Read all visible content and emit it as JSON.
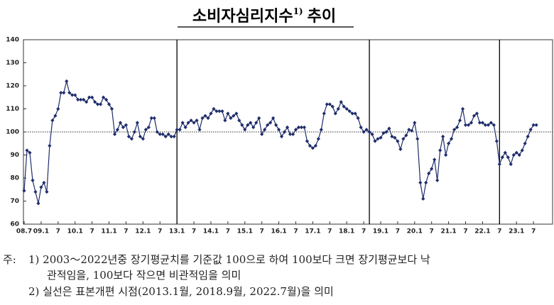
{
  "chart_data": {
    "type": "line",
    "title": "소비자심리지수",
    "title_sup": "1)",
    "title_suffix": "추이",
    "categories": [
      "08.7",
      null,
      null,
      null,
      null,
      null,
      "09.1",
      null,
      null,
      null,
      null,
      null,
      "7",
      null,
      null,
      null,
      null,
      null,
      "10.1",
      null,
      null,
      null,
      null,
      null,
      "7",
      null,
      null,
      null,
      null,
      null,
      "11.1",
      null,
      null,
      null,
      null,
      null,
      "7",
      null,
      null,
      null,
      null,
      null,
      "12.1",
      null,
      null,
      null,
      null,
      null,
      "7",
      null,
      null,
      null,
      null,
      null,
      "13.1",
      null,
      null,
      null,
      null,
      null,
      "7",
      null,
      null,
      null,
      null,
      null,
      "14.1",
      null,
      null,
      null,
      null,
      null,
      "7",
      null,
      null,
      null,
      null,
      null,
      "15.1",
      null,
      null,
      null,
      null,
      null,
      "7",
      null,
      null,
      null,
      null,
      null,
      "16.1",
      null,
      null,
      null,
      null,
      null,
      "7",
      null,
      null,
      null,
      null,
      null,
      "17.1",
      null,
      null,
      null,
      null,
      null,
      "7",
      null,
      null,
      null,
      null,
      null,
      "18.1",
      null,
      null,
      null,
      null,
      null,
      "7",
      null,
      null,
      null,
      null,
      null,
      "19.1",
      null,
      null,
      null,
      null,
      null,
      "7",
      null,
      null,
      null,
      null,
      null,
      "20.1",
      null,
      null,
      null,
      null,
      null,
      "7",
      null,
      null,
      null,
      null,
      null,
      "21.1",
      null,
      null,
      null,
      null,
      null,
      "7",
      null,
      null,
      null,
      null,
      null,
      "22.1",
      null,
      null,
      null,
      null,
      null,
      "7",
      null,
      null,
      null,
      null,
      null,
      "23.1",
      null,
      null,
      null,
      null,
      null,
      "7",
      null,
      null,
      null,
      null,
      null,
      null
    ],
    "values": [
      74.5,
      92,
      91,
      79,
      74,
      69,
      76,
      78,
      74,
      94,
      105,
      107,
      110,
      117,
      117,
      122,
      117,
      116,
      116,
      114,
      114,
      114,
      113,
      115,
      115,
      113,
      112,
      112,
      115,
      114,
      112,
      110,
      99,
      101,
      104,
      102,
      103,
      98,
      97,
      100,
      104,
      98,
      97,
      101,
      102,
      106,
      106,
      100,
      99,
      99,
      98,
      99,
      98,
      98,
      101,
      101,
      104,
      102,
      104,
      105,
      104,
      105,
      101,
      106,
      107,
      106,
      108,
      110,
      109,
      109,
      109,
      105,
      108,
      106,
      107,
      108,
      105,
      103,
      101,
      103,
      104,
      102,
      104,
      106,
      99,
      101,
      103,
      104,
      106,
      103,
      101,
      98,
      100,
      102,
      99,
      99,
      101,
      102,
      102,
      102,
      96,
      94,
      93,
      94,
      97,
      101,
      108,
      112,
      112,
      111,
      108,
      110,
      113,
      111,
      110,
      109,
      108,
      108,
      106,
      102,
      100,
      101,
      100,
      99,
      96,
      97,
      97.5,
      99.5,
      100,
      101.5,
      98,
      97.5,
      96,
      92.5,
      97,
      98.5,
      101,
      100.5,
      104,
      97,
      78,
      71,
      78,
      82,
      84,
      88,
      79,
      92,
      98,
      90,
      95,
      97,
      101,
      102,
      105,
      110,
      103,
      103,
      104,
      107,
      108,
      104,
      104,
      103,
      103,
      104,
      103,
      96,
      86,
      89,
      91,
      89,
      86,
      90,
      91,
      90,
      92,
      95,
      98,
      101,
      103,
      103,
      null,
      null,
      null,
      null,
      null
    ],
    "color": "#1f2d6b",
    "ylim": [
      60,
      140
    ],
    "yticks": [
      60,
      70,
      80,
      90,
      100,
      110,
      120,
      130,
      140
    ],
    "reference_line_y": 100,
    "reference_lines_x": [
      54,
      122,
      168
    ],
    "grid": false,
    "notes_label": "주:",
    "notes": [
      "1) 2003～2022년중 장기평균치를 기준값 100으로 하여 100보다 크면 장기평균보다 낙",
      "관적임을, 100보다 작으면 비관적임을 의미",
      "2) 실선은 표본개편 시점(2013.1월, 2018.9월, 2022.7월)을 의미"
    ]
  }
}
